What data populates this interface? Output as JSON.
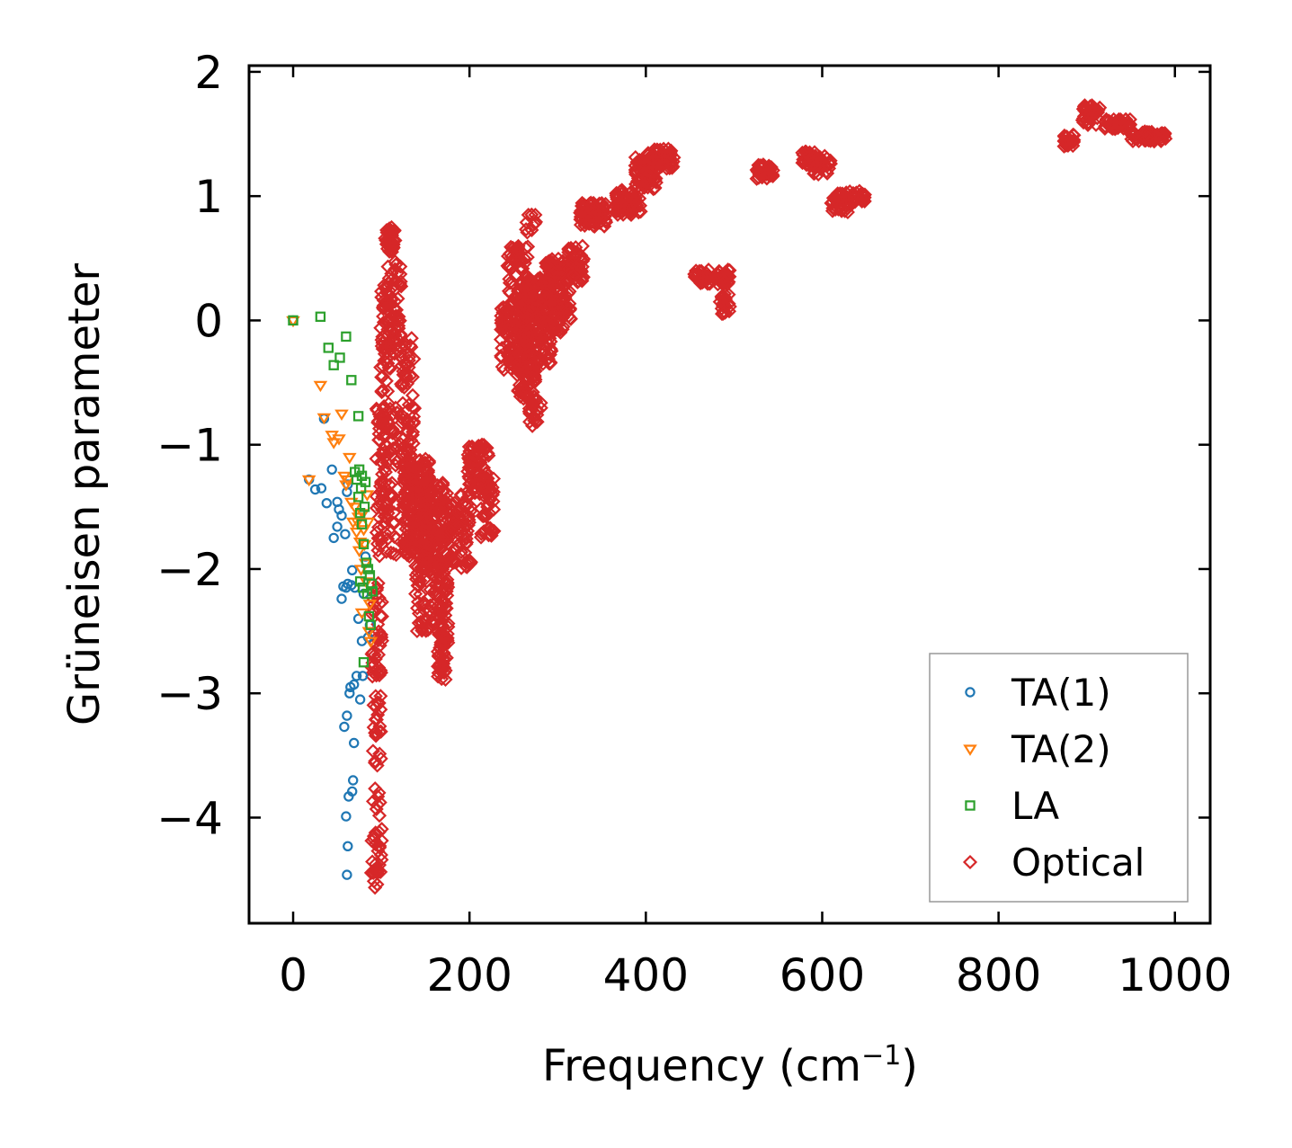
{
  "chart_data": {
    "type": "scatter",
    "xlabel": "Frequency (cm",
    "xlabel_sup": "−1",
    "xlabel_tail": ")",
    "ylabel": "Grüneisen parameter",
    "xlim": [
      -50,
      1040
    ],
    "ylim": [
      -4.85,
      2.05
    ],
    "xticks": [
      0,
      200,
      400,
      600,
      800,
      1000
    ],
    "xtick_labels": [
      "0",
      "200",
      "400",
      "600",
      "800",
      "1000"
    ],
    "yticks": [
      2,
      1,
      0,
      -1,
      -2,
      -3,
      -4
    ],
    "ytick_labels": [
      "2",
      "1",
      "0",
      "−1",
      "−2",
      "−3",
      "−4"
    ],
    "legend_position": "lower-right",
    "series": [
      {
        "name": "TA(1)",
        "marker": "circle",
        "color": "#1f77b4",
        "points": [
          [
            0,
            0.0
          ],
          [
            18,
            -1.28
          ],
          [
            25,
            -1.36
          ],
          [
            32,
            -1.35
          ],
          [
            35,
            -0.79
          ],
          [
            38,
            -1.47
          ],
          [
            44,
            -1.2
          ],
          [
            46,
            -1.75
          ],
          [
            50,
            -1.46
          ],
          [
            50,
            -1.66
          ],
          [
            52,
            -1.52
          ],
          [
            55,
            -1.57
          ],
          [
            55,
            -2.24
          ],
          [
            57,
            -2.14
          ],
          [
            58,
            -3.27
          ],
          [
            59,
            -1.72
          ],
          [
            60,
            -3.99
          ],
          [
            60,
            -2.15
          ],
          [
            61,
            -4.46
          ],
          [
            61,
            -1.38
          ],
          [
            61,
            -3.18
          ],
          [
            62,
            -1.32
          ],
          [
            62,
            -4.23
          ],
          [
            62,
            -2.12
          ],
          [
            63,
            -3.83
          ],
          [
            64,
            -3.0
          ],
          [
            65,
            -2.95
          ],
          [
            66,
            -2.13
          ],
          [
            67,
            -2.01
          ],
          [
            67,
            -3.79
          ],
          [
            68,
            -3.7
          ],
          [
            69,
            -3.4
          ],
          [
            69,
            -2.93
          ],
          [
            70,
            -2.15
          ],
          [
            72,
            -2.86
          ],
          [
            74,
            -2.4
          ],
          [
            76,
            -3.05
          ],
          [
            78,
            -2.58
          ],
          [
            79,
            -2.86
          ],
          [
            80,
            -2.2
          ],
          [
            82,
            -1.9
          ],
          [
            85,
            -2.55
          ],
          [
            87,
            -2.45
          ]
        ]
      },
      {
        "name": "TA(2)",
        "marker": "triangle",
        "color": "#ff7f0e",
        "points": [
          [
            0,
            0.0
          ],
          [
            18,
            -1.28
          ],
          [
            31,
            -0.52
          ],
          [
            35,
            -0.78
          ],
          [
            44,
            -0.92
          ],
          [
            46,
            -0.98
          ],
          [
            52,
            -0.95
          ],
          [
            55,
            -0.75
          ],
          [
            58,
            -1.25
          ],
          [
            60,
            -1.32
          ],
          [
            62,
            -1.28
          ],
          [
            64,
            -1.1
          ],
          [
            66,
            -1.46
          ],
          [
            68,
            -1.62
          ],
          [
            70,
            -1.5
          ],
          [
            72,
            -1.7
          ],
          [
            73,
            -1.62
          ],
          [
            74,
            -1.58
          ],
          [
            75,
            -1.85
          ],
          [
            76,
            -1.78
          ],
          [
            77,
            -2.0
          ],
          [
            78,
            -2.35
          ],
          [
            79,
            -1.55
          ],
          [
            80,
            -1.68
          ],
          [
            81,
            -1.8
          ],
          [
            82,
            -1.95
          ],
          [
            83,
            -2.1
          ],
          [
            84,
            -1.4
          ],
          [
            85,
            -1.62
          ],
          [
            86,
            -2.5
          ],
          [
            87,
            -2.28
          ],
          [
            88,
            -2.58
          ]
        ]
      },
      {
        "name": "LA",
        "marker": "square",
        "color": "#2ca02c",
        "points": [
          [
            0,
            0.0
          ],
          [
            31,
            0.03
          ],
          [
            40,
            -0.22
          ],
          [
            46,
            -0.36
          ],
          [
            53,
            -0.3
          ],
          [
            60,
            -0.13
          ],
          [
            66,
            -0.48
          ],
          [
            70,
            -1.22
          ],
          [
            72,
            -1.28
          ],
          [
            74,
            -0.77
          ],
          [
            74,
            -1.42
          ],
          [
            75,
            -1.2
          ],
          [
            76,
            -1.55
          ],
          [
            76,
            -2.1
          ],
          [
            77,
            -1.35
          ],
          [
            78,
            -1.25
          ],
          [
            78,
            -1.64
          ],
          [
            79,
            -2.15
          ],
          [
            80,
            -1.8
          ],
          [
            80,
            -2.75
          ],
          [
            81,
            -1.5
          ],
          [
            82,
            -1.3
          ],
          [
            83,
            -1.95
          ],
          [
            84,
            -2.2
          ],
          [
            85,
            -2.0
          ],
          [
            86,
            -2.38
          ],
          [
            87,
            -2.05
          ],
          [
            88,
            -2.45
          ],
          [
            89,
            -2.12
          ],
          [
            90,
            -2.18
          ]
        ]
      },
      {
        "name": "Optical",
        "marker": "diamond",
        "color": "#d62728",
        "clusters": [
          [
            110,
            0.65,
            6,
            0.1,
            40
          ],
          [
            105,
            -0.2,
            6,
            0.5,
            60
          ],
          [
            100,
            -1.3,
            6,
            0.6,
            60
          ],
          [
            95,
            -2.5,
            6,
            0.4,
            40
          ],
          [
            95,
            -3.3,
            5,
            0.3,
            25
          ],
          [
            95,
            -4.1,
            6,
            0.35,
            30
          ],
          [
            92,
            -4.5,
            4,
            0.1,
            6
          ],
          [
            110,
            -1.3,
            8,
            0.6,
            50
          ],
          [
            115,
            0.1,
            8,
            0.4,
            60
          ],
          [
            130,
            -0.6,
            8,
            0.5,
            60
          ],
          [
            140,
            -1.5,
            15,
            0.4,
            220
          ],
          [
            160,
            -1.65,
            15,
            0.35,
            160
          ],
          [
            150,
            -2.2,
            12,
            0.3,
            60
          ],
          [
            170,
            -2.7,
            6,
            0.2,
            40
          ],
          [
            170,
            -2.3,
            6,
            0.3,
            50
          ],
          [
            190,
            -1.7,
            12,
            0.3,
            80
          ],
          [
            210,
            -1.2,
            12,
            0.2,
            80
          ],
          [
            220,
            -1.5,
            8,
            0.25,
            40
          ],
          [
            255,
            0.3,
            12,
            0.3,
            80
          ],
          [
            250,
            -0.15,
            15,
            0.3,
            120
          ],
          [
            275,
            0.0,
            18,
            0.35,
            180
          ],
          [
            300,
            0.2,
            15,
            0.3,
            140
          ],
          [
            265,
            -0.5,
            10,
            0.15,
            50
          ],
          [
            275,
            -0.75,
            8,
            0.1,
            20
          ],
          [
            320,
            0.45,
            10,
            0.15,
            40
          ],
          [
            340,
            0.85,
            15,
            0.1,
            80
          ],
          [
            380,
            0.95,
            15,
            0.1,
            70
          ],
          [
            400,
            1.2,
            12,
            0.15,
            80
          ],
          [
            420,
            1.3,
            12,
            0.08,
            50
          ],
          [
            270,
            0.8,
            6,
            0.12,
            10
          ],
          [
            475,
            0.35,
            20,
            0.06,
            60
          ],
          [
            490,
            0.15,
            6,
            0.1,
            20
          ],
          [
            535,
            1.2,
            10,
            0.06,
            40
          ],
          [
            585,
            1.3,
            8,
            0.06,
            30
          ],
          [
            600,
            1.25,
            10,
            0.08,
            30
          ],
          [
            620,
            0.95,
            10,
            0.08,
            40
          ],
          [
            640,
            1.0,
            10,
            0.05,
            25
          ],
          [
            880,
            1.45,
            6,
            0.05,
            20
          ],
          [
            905,
            1.65,
            10,
            0.08,
            40
          ],
          [
            935,
            1.58,
            15,
            0.04,
            50
          ],
          [
            970,
            1.48,
            20,
            0.04,
            60
          ]
        ]
      }
    ]
  }
}
